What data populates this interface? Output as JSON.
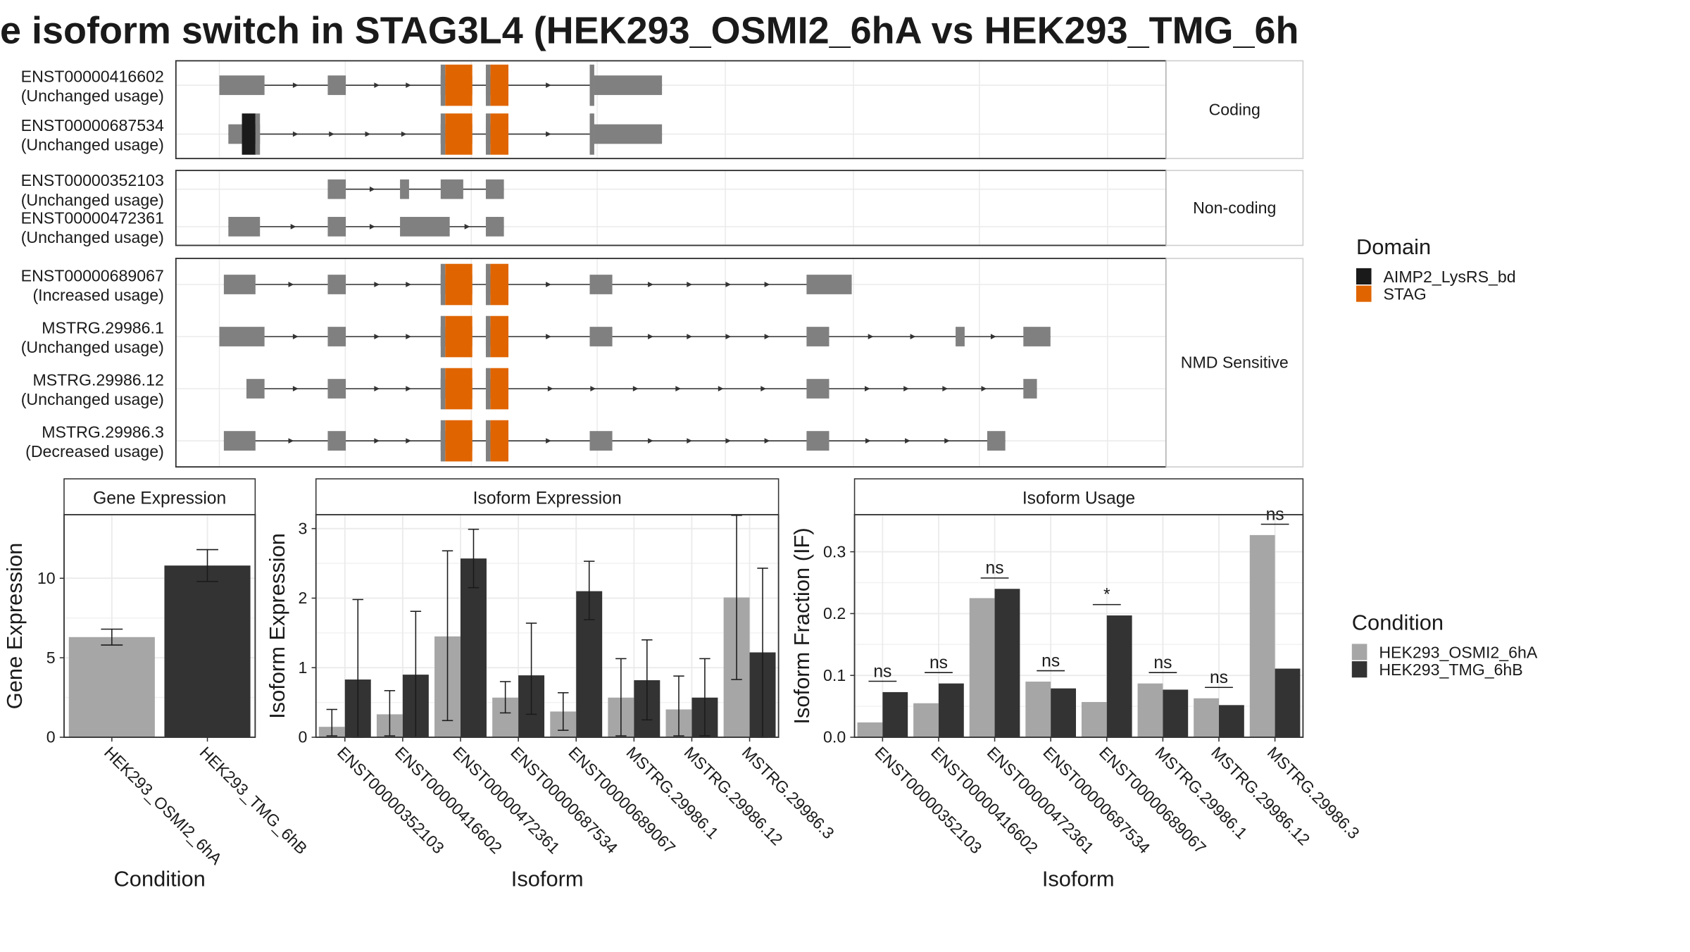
{
  "title": "e isoform switch in STAG3L4 (HEK293_OSMI2_6hA vs HEK293_TMG_6h",
  "colors": {
    "exon": "#808080",
    "domain_AIMP2": "#1a1a1a",
    "domain_STAG": "#e06500",
    "cond_A": "#a6a6a6",
    "cond_B": "#333333",
    "grid": "#ebebeb",
    "border": "#333333"
  },
  "structure": {
    "x_range": [
      0,
      100
    ],
    "groups": [
      {
        "strip": "Coding",
        "transcripts": [
          {
            "id": "ENST00000416602",
            "usage": "(Unchanged usage)",
            "exons": [
              [
                0,
                5
              ],
              [
                12,
                14
              ],
              [
                24.5,
                25
              ],
              [
                25,
                28
              ],
              [
                29.5,
                30
              ],
              [
                30,
                32
              ],
              [
                41,
                41.5
              ],
              [
                41.5,
                49
              ]
            ],
            "domains": [
              {
                "name": "STAG",
                "range": [
                  25,
                  28
                ]
              },
              {
                "name": "STAG",
                "range": [
                  30,
                  32
                ]
              }
            ]
          },
          {
            "id": "ENST00000687534",
            "usage": "(Unchanged usage)",
            "exons": [
              [
                1,
                2.5
              ],
              [
                2.5,
                4
              ],
              [
                4,
                4.5
              ],
              [
                24.5,
                25
              ],
              [
                25,
                28
              ],
              [
                29.5,
                30
              ],
              [
                30,
                32
              ],
              [
                41,
                41.5
              ],
              [
                41.5,
                49
              ]
            ],
            "domains": [
              {
                "name": "AIMP2_LysRS_bd",
                "range": [
                  2.5,
                  4
                ]
              },
              {
                "name": "STAG",
                "range": [
                  25,
                  28
                ]
              },
              {
                "name": "STAG",
                "range": [
                  30,
                  32
                ]
              }
            ]
          }
        ]
      },
      {
        "strip": "Non-coding",
        "transcripts": [
          {
            "id": "ENST00000352103",
            "usage": "(Unchanged usage)",
            "exons": [
              [
                12,
                14
              ],
              [
                20,
                21
              ],
              [
                24.5,
                27
              ],
              [
                29.5,
                31.5
              ]
            ],
            "domains": []
          },
          {
            "id": "ENST00000472361",
            "usage": "(Unchanged usage)",
            "exons": [
              [
                1,
                4.5
              ],
              [
                12,
                14
              ],
              [
                20,
                25.5
              ],
              [
                29.5,
                31.5
              ]
            ],
            "domains": []
          }
        ]
      },
      {
        "strip": "NMD Sensitive",
        "transcripts": [
          {
            "id": "ENST00000689067",
            "usage": "(Increased usage)",
            "exons": [
              [
                0.5,
                4
              ],
              [
                12,
                14
              ],
              [
                24.5,
                25
              ],
              [
                25,
                28
              ],
              [
                29.5,
                30
              ],
              [
                30,
                32
              ],
              [
                41,
                43.5
              ],
              [
                65,
                70
              ]
            ],
            "domains": [
              {
                "name": "STAG",
                "range": [
                  25,
                  28
                ]
              },
              {
                "name": "STAG",
                "range": [
                  30,
                  32
                ]
              }
            ]
          },
          {
            "id": "MSTRG.29986.1",
            "usage": "(Unchanged usage)",
            "exons": [
              [
                0,
                5
              ],
              [
                12,
                14
              ],
              [
                24.5,
                25
              ],
              [
                25,
                28
              ],
              [
                29.5,
                30
              ],
              [
                30,
                32
              ],
              [
                41,
                43.5
              ],
              [
                65,
                67.5
              ],
              [
                81.5,
                82.5
              ],
              [
                89,
                92
              ]
            ],
            "domains": [
              {
                "name": "STAG",
                "range": [
                  25,
                  28
                ]
              },
              {
                "name": "STAG",
                "range": [
                  30,
                  32
                ]
              }
            ]
          },
          {
            "id": "MSTRG.29986.12",
            "usage": "(Unchanged usage)",
            "exons": [
              [
                3,
                5
              ],
              [
                12,
                14
              ],
              [
                24.5,
                25
              ],
              [
                25,
                28
              ],
              [
                29.5,
                30
              ],
              [
                30,
                32
              ],
              [
                65,
                67.5
              ],
              [
                89,
                90.5
              ]
            ],
            "domains": [
              {
                "name": "STAG",
                "range": [
                  25,
                  28
                ]
              },
              {
                "name": "STAG",
                "range": [
                  30,
                  32
                ]
              }
            ]
          },
          {
            "id": "MSTRG.29986.3",
            "usage": "(Decreased usage)",
            "exons": [
              [
                0.5,
                4
              ],
              [
                12,
                14
              ],
              [
                24.5,
                25
              ],
              [
                25,
                28
              ],
              [
                29.5,
                30
              ],
              [
                30,
                32
              ],
              [
                41,
                43.5
              ],
              [
                65,
                67.5
              ],
              [
                85,
                87
              ]
            ],
            "domains": [
              {
                "name": "STAG",
                "range": [
                  25,
                  28
                ]
              },
              {
                "name": "STAG",
                "range": [
                  30,
                  32
                ]
              }
            ]
          }
        ]
      }
    ]
  },
  "domain_legend": {
    "title": "Domain",
    "items": [
      {
        "label": "AIMP2_LysRS_bd",
        "color": "#1a1a1a"
      },
      {
        "label": "STAG",
        "color": "#e06500"
      }
    ]
  },
  "condition_legend": {
    "title": "Condition",
    "items": [
      {
        "label": "HEK293_OSMI2_6hA",
        "color": "#a6a6a6"
      },
      {
        "label": "HEK293_TMG_6hB",
        "color": "#333333"
      }
    ]
  },
  "chart_data": [
    {
      "type": "bar",
      "strip": "Gene Expression",
      "xlabel": "Condition",
      "ylabel": "Gene Expression",
      "ylim": [
        0,
        14
      ],
      "yticks": [
        0,
        5,
        10
      ],
      "categories": [
        "HEK293_OSMI2_6hA",
        "HEK293_TMG_6hB"
      ],
      "values": [
        6.3,
        10.8
      ],
      "errors": [
        [
          5.8,
          6.8
        ],
        [
          9.8,
          11.8
        ]
      ]
    },
    {
      "type": "bar",
      "strip": "Isoform Expression",
      "xlabel": "Isoform",
      "ylabel": "Isoform Expression",
      "ylim": [
        0,
        3.2
      ],
      "yticks": [
        0,
        1,
        2,
        3
      ],
      "categories": [
        "ENST00000352103",
        "ENST00000416602",
        "ENST00000472361",
        "ENST00000687534",
        "ENST00000689067",
        "MSTRG.29986.1",
        "MSTRG.29986.12",
        "MSTRG.29986.3"
      ],
      "series": [
        {
          "name": "HEK293_OSMI2_6hA",
          "values": [
            0.15,
            0.33,
            1.45,
            0.57,
            0.37,
            0.57,
            0.4,
            2.01
          ],
          "errors": [
            [
              0.02,
              0.4
            ],
            [
              0.02,
              0.67
            ],
            [
              0.24,
              2.68
            ],
            [
              0.35,
              0.8
            ],
            [
              0.1,
              0.64
            ],
            [
              0.02,
              1.13
            ],
            [
              0.02,
              0.88
            ],
            [
              0.83,
              3.19
            ]
          ]
        },
        {
          "name": "HEK293_TMG_6hB",
          "values": [
            0.83,
            0.9,
            2.57,
            0.89,
            2.1,
            0.82,
            0.57,
            1.22
          ],
          "errors": [
            [
              0.0,
              1.98
            ],
            [
              0.0,
              1.81
            ],
            [
              2.15,
              2.99
            ],
            [
              0.33,
              1.64
            ],
            [
              1.69,
              2.53
            ],
            [
              0.25,
              1.4
            ],
            [
              0.02,
              1.13
            ],
            [
              0.0,
              2.43
            ]
          ]
        }
      ]
    },
    {
      "type": "bar",
      "strip": "Isoform Usage",
      "xlabel": "Isoform",
      "ylabel": "Isoform Fraction (IF)",
      "ylim": [
        0,
        0.36
      ],
      "yticks": [
        0.0,
        0.1,
        0.2,
        0.3
      ],
      "ytick_labels": [
        "0.0",
        "0.1",
        "0.2",
        "0.3"
      ],
      "categories": [
        "ENST00000352103",
        "ENST00000416602",
        "ENST00000472361",
        "ENST00000687534",
        "ENST00000689067",
        "MSTRG.29986.1",
        "MSTRG.29986.12",
        "MSTRG.29986.3"
      ],
      "series": [
        {
          "name": "HEK293_OSMI2_6hA",
          "values": [
            0.024,
            0.055,
            0.225,
            0.09,
            0.057,
            0.087,
            0.063,
            0.327
          ]
        },
        {
          "name": "HEK293_TMG_6hB",
          "values": [
            0.073,
            0.087,
            0.24,
            0.079,
            0.197,
            0.077,
            0.052,
            0.111
          ]
        }
      ],
      "significance": [
        "ns",
        "ns",
        "ns",
        "ns",
        "*",
        "ns",
        "ns",
        "ns"
      ]
    }
  ]
}
